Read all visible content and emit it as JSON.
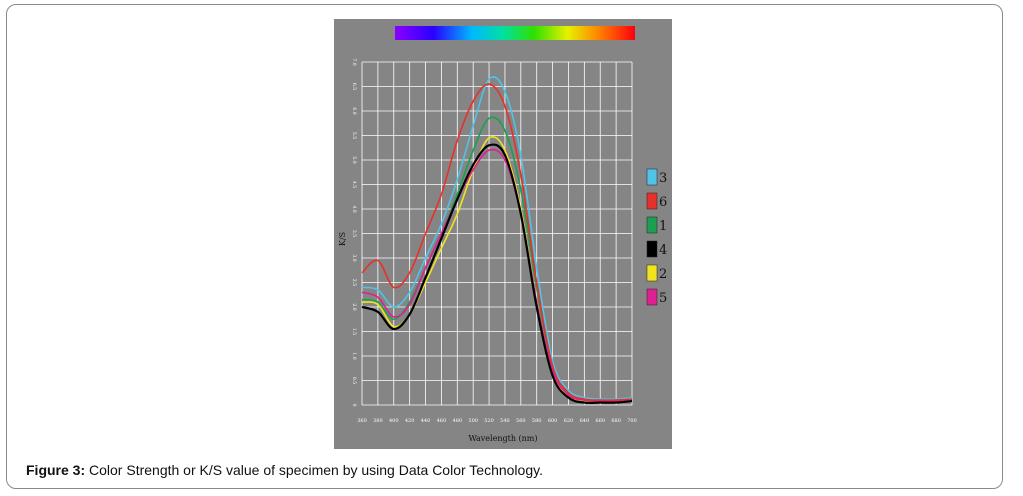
{
  "caption": {
    "label": "Figure 3:",
    "text": " Color Strength or K/S value of specimen by using Data Color Technology."
  },
  "colors": {
    "background": "#858585",
    "grid": "#ffffff"
  },
  "chart_data": {
    "type": "line",
    "title": "",
    "xlabel": "Wavelength (nm)",
    "ylabel": "K/S",
    "xlim": [
      360,
      700
    ],
    "ylim": [
      0,
      7
    ],
    "xticks": [
      360,
      380,
      400,
      420,
      440,
      460,
      480,
      500,
      520,
      540,
      560,
      580,
      600,
      620,
      640,
      660,
      680,
      700
    ],
    "yticks": [
      "0",
      "0.5",
      "1.0",
      "1.5",
      "2.0",
      "2.5",
      "3.0",
      "3.5",
      "4.0",
      "4.5",
      "5.0",
      "5.5",
      "6.0",
      "6.5",
      "7.0"
    ],
    "grid": true,
    "legend_position": "right",
    "spectrum_bar": true,
    "x": [
      360,
      380,
      400,
      420,
      440,
      460,
      480,
      500,
      520,
      540,
      560,
      580,
      600,
      620,
      640,
      660,
      680,
      700
    ],
    "series": [
      {
        "name": "3",
        "color": "#4fc3e8",
        "values": [
          2.4,
          2.35,
          2.0,
          2.3,
          3.0,
          3.7,
          4.6,
          5.7,
          6.65,
          6.4,
          5.1,
          2.8,
          0.9,
          0.3,
          0.15,
          0.12,
          0.12,
          0.15
        ]
      },
      {
        "name": "6",
        "color": "#e8302a",
        "values": [
          2.7,
          2.95,
          2.4,
          2.7,
          3.5,
          4.3,
          5.4,
          6.2,
          6.55,
          6.1,
          4.7,
          2.5,
          0.8,
          0.25,
          0.12,
          0.1,
          0.1,
          0.12
        ]
      },
      {
        "name": "1",
        "color": "#1aa050",
        "values": [
          2.15,
          2.1,
          1.75,
          2.1,
          2.8,
          3.5,
          4.3,
          5.2,
          5.85,
          5.6,
          4.4,
          2.4,
          0.75,
          0.22,
          0.1,
          0.08,
          0.08,
          0.1
        ]
      },
      {
        "name": "4",
        "color": "#000000",
        "values": [
          2.0,
          1.9,
          1.55,
          1.85,
          2.6,
          3.4,
          4.2,
          4.9,
          5.3,
          5.1,
          3.9,
          2.0,
          0.6,
          0.15,
          0.05,
          0.05,
          0.05,
          0.08
        ]
      },
      {
        "name": "2",
        "color": "#f2e31c",
        "values": [
          2.1,
          2.05,
          1.6,
          1.85,
          2.5,
          3.2,
          3.9,
          4.8,
          5.45,
          5.2,
          4.0,
          2.1,
          0.65,
          0.18,
          0.08,
          0.06,
          0.06,
          0.08
        ]
      },
      {
        "name": "5",
        "color": "#e02090",
        "values": [
          2.3,
          2.2,
          1.8,
          2.05,
          2.8,
          3.5,
          4.2,
          4.8,
          5.2,
          5.0,
          3.9,
          2.1,
          0.7,
          0.2,
          0.1,
          0.08,
          0.08,
          0.1
        ]
      }
    ]
  }
}
